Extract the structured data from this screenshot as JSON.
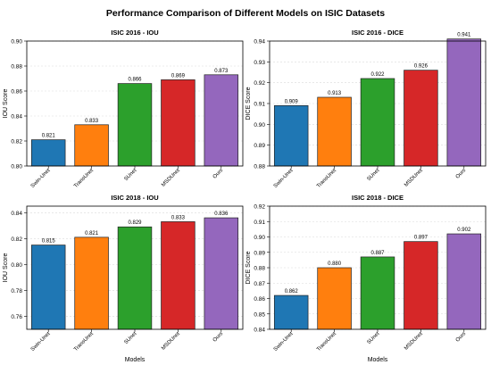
{
  "figure_title": "Performance Comparison of Different Models on ISIC Datasets",
  "colors": [
    "#1f77b4",
    "#ff7f0e",
    "#2ca02c",
    "#d62728",
    "#9467bd"
  ],
  "chart_data": [
    {
      "type": "bar",
      "title": "ISIC 2016 - IOU",
      "xlabel": "",
      "ylabel": "IOU Score",
      "categories": [
        "Swin-Unet",
        "TransUnet",
        "SUnet",
        "MSDUnet",
        "Ours"
      ],
      "values": [
        0.821,
        0.833,
        0.866,
        0.869,
        0.873
      ],
      "value_labels": [
        "0.821",
        "0.833",
        "0.866",
        "0.869",
        "0.873"
      ],
      "ylim": [
        0.8,
        0.9
      ],
      "yticks": [
        "0.80",
        "0.82",
        "0.84",
        "0.86",
        "0.88",
        "0.90"
      ],
      "ytick_values": [
        0.8,
        0.82,
        0.84,
        0.86,
        0.88,
        0.9
      ],
      "grid": true
    },
    {
      "type": "bar",
      "title": "ISIC 2016 - DICE",
      "xlabel": "",
      "ylabel": "DICE Score",
      "categories": [
        "Swin-Unet",
        "TransUnet",
        "SUnet",
        "MSDUnet",
        "Ours"
      ],
      "values": [
        0.909,
        0.913,
        0.922,
        0.926,
        0.941
      ],
      "value_labels": [
        "0.909",
        "0.913",
        "0.922",
        "0.926",
        "0.941"
      ],
      "ylim": [
        0.88,
        0.94
      ],
      "yticks": [
        "0.88",
        "0.89",
        "0.90",
        "0.91",
        "0.92",
        "0.93",
        "0.94"
      ],
      "ytick_values": [
        0.88,
        0.89,
        0.9,
        0.91,
        0.92,
        0.93,
        0.94
      ],
      "grid": true
    },
    {
      "type": "bar",
      "title": "ISIC 2018 - IOU",
      "xlabel": "Models",
      "ylabel": "IOU Score",
      "categories": [
        "Swin-Unet",
        "TransUnet",
        "SUnet",
        "MSDUnet",
        "Ours"
      ],
      "values": [
        0.815,
        0.821,
        0.829,
        0.833,
        0.836
      ],
      "value_labels": [
        "0.815",
        "0.821",
        "0.829",
        "0.833",
        "0.836"
      ],
      "ylim": [
        0.75,
        0.845
      ],
      "yticks": [
        "0.76",
        "0.78",
        "0.80",
        "0.82",
        "0.84"
      ],
      "ytick_values": [
        0.76,
        0.78,
        0.8,
        0.82,
        0.84
      ],
      "grid": true
    },
    {
      "type": "bar",
      "title": "ISIC 2018 - DICE",
      "xlabel": "Models",
      "ylabel": "DICE Score",
      "categories": [
        "Swin-Unet",
        "TransUnet",
        "SUnet",
        "MSDUnet",
        "Ours"
      ],
      "values": [
        0.862,
        0.88,
        0.887,
        0.897,
        0.902
      ],
      "value_labels": [
        "0.862",
        "0.880",
        "0.887",
        "0.897",
        "0.902"
      ],
      "ylim": [
        0.84,
        0.92
      ],
      "yticks": [
        "0.84",
        "0.85",
        "0.86",
        "0.87",
        "0.88",
        "0.89",
        "0.90",
        "0.91",
        "0.92"
      ],
      "ytick_values": [
        0.84,
        0.85,
        0.86,
        0.87,
        0.88,
        0.89,
        0.9,
        0.91,
        0.92
      ],
      "grid": true
    }
  ]
}
